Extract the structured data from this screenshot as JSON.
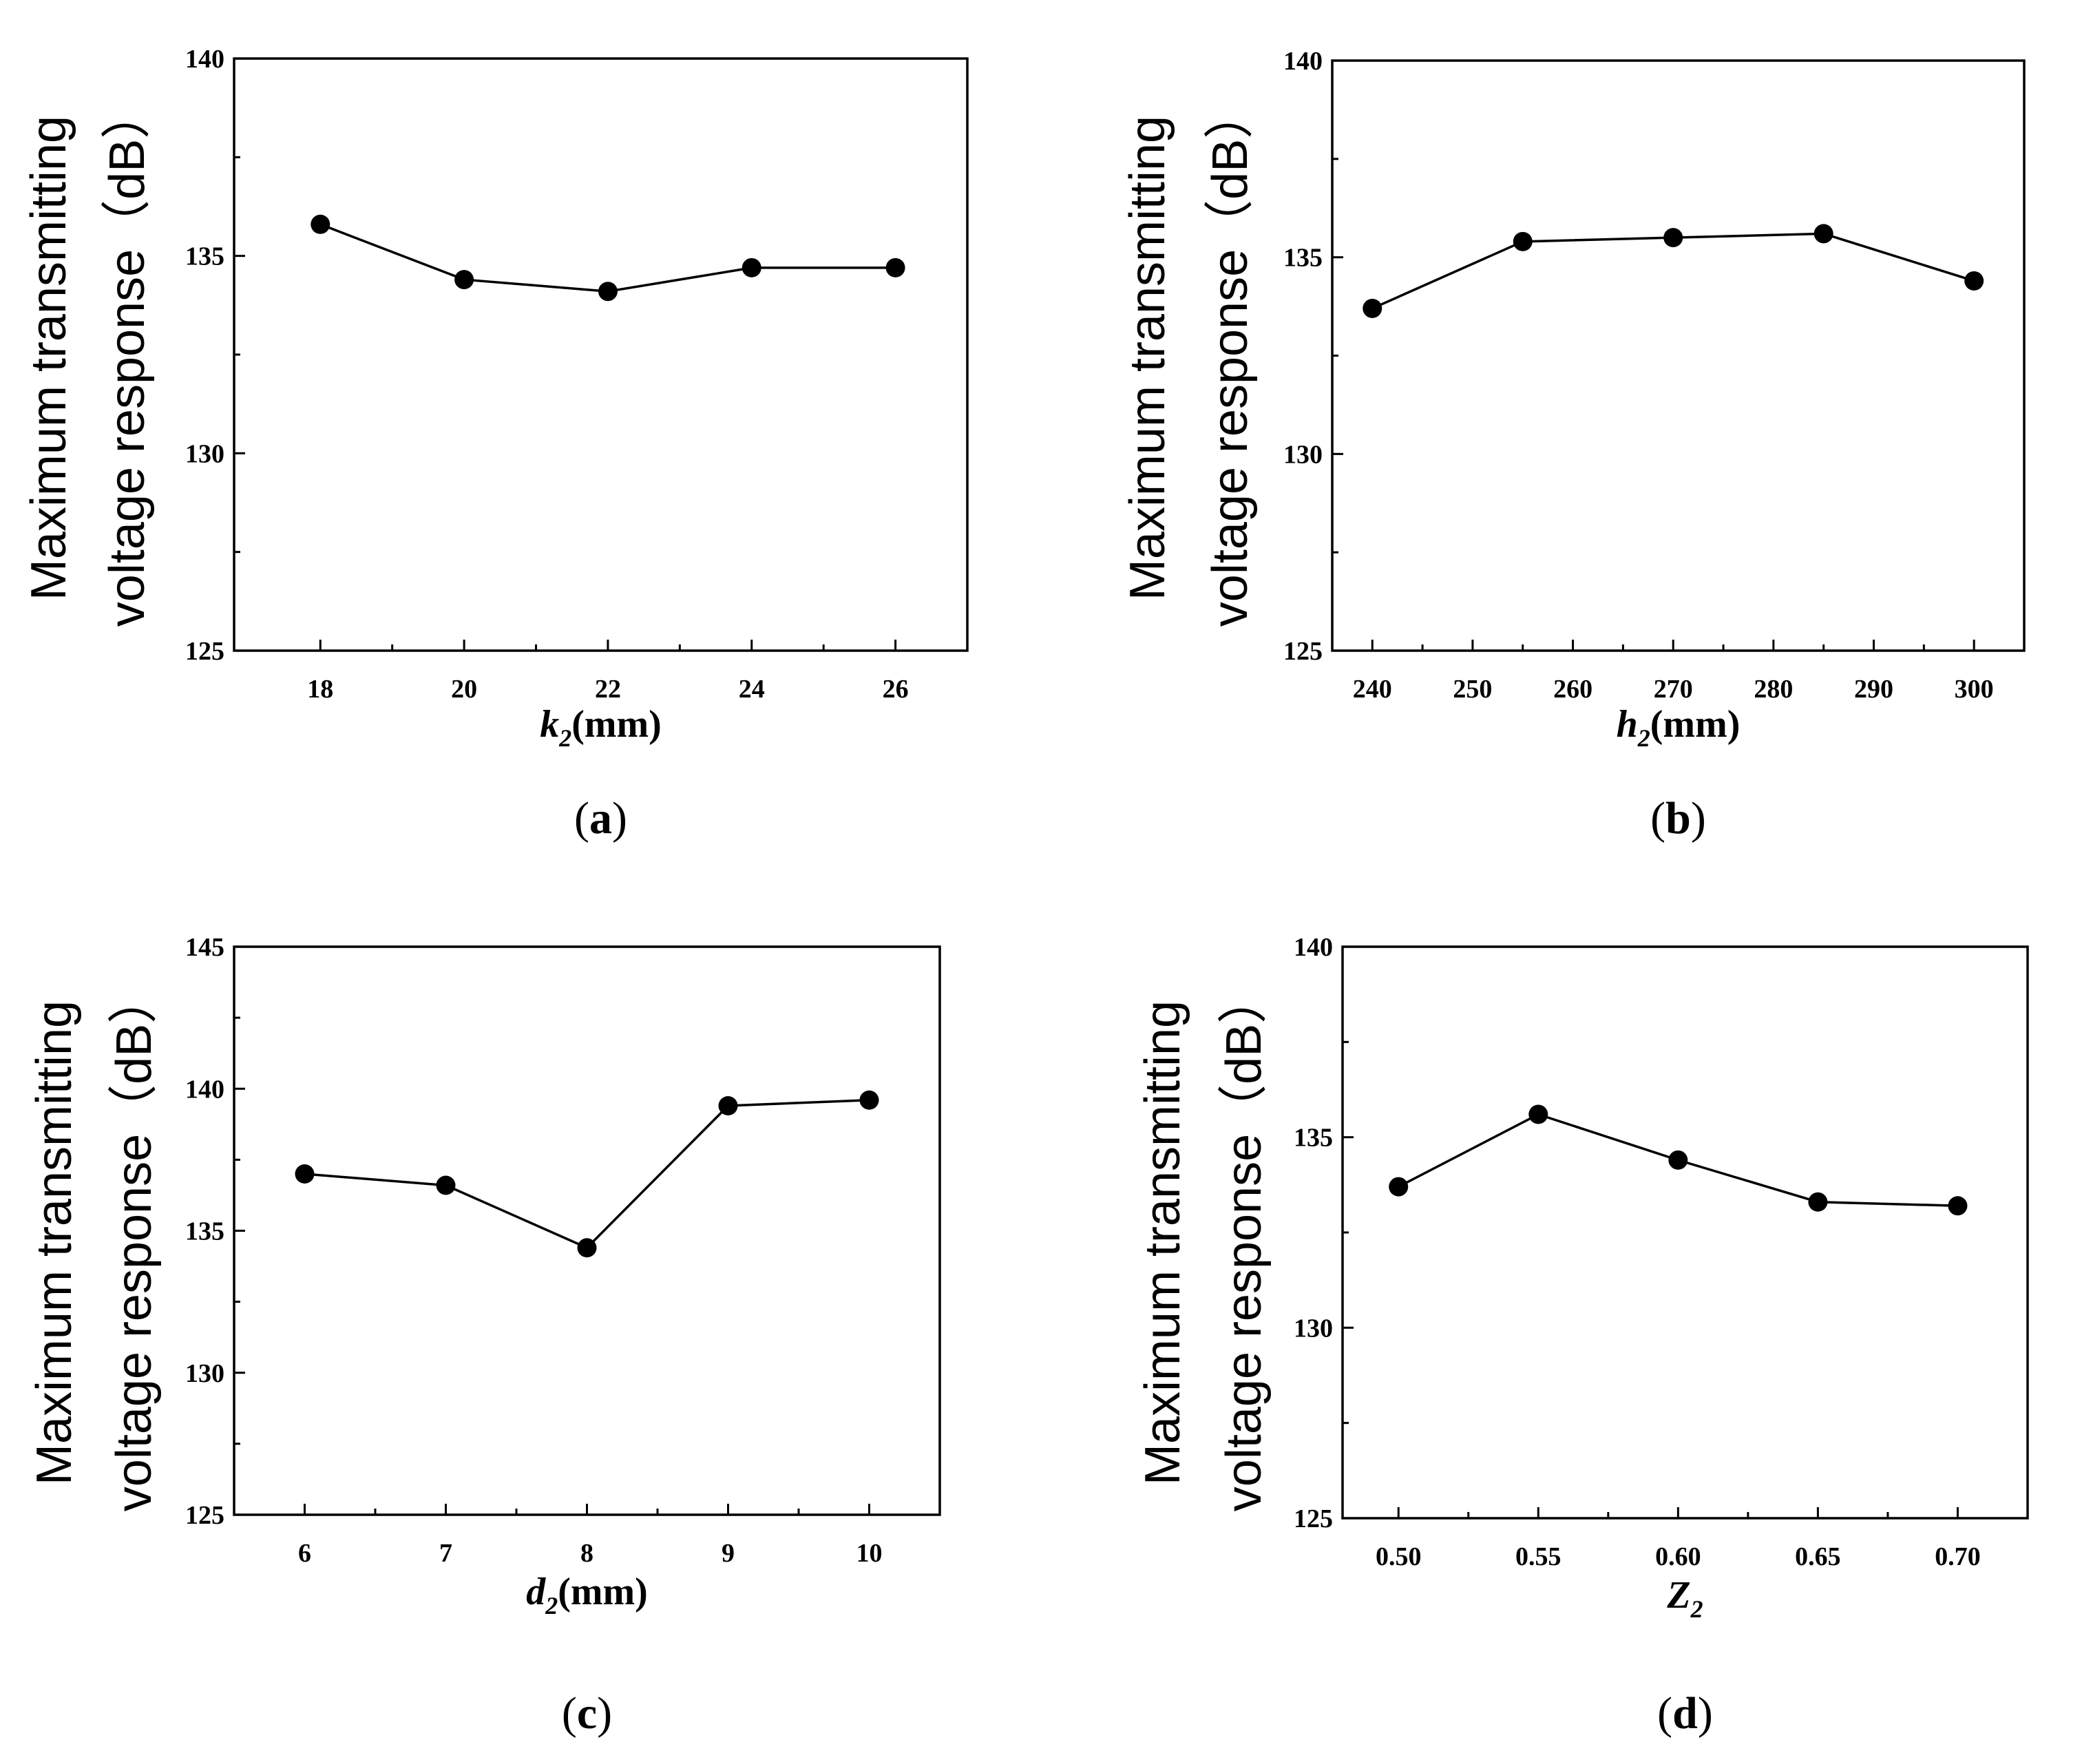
{
  "chart_data": [
    {
      "type": "line",
      "panel_label": "a",
      "xlabel": {
        "var": "k",
        "sub": "2",
        "unit": "(mm)"
      },
      "ylabel_lines": [
        "Maximum transmitting",
        "voltage response（dB）"
      ],
      "x": [
        18,
        20,
        22,
        24,
        26
      ],
      "values": [
        135.8,
        134.4,
        134.1,
        134.7,
        134.7
      ],
      "xlim": [
        16.8,
        27
      ],
      "ylim": [
        125,
        140
      ],
      "xticks": [
        18,
        20,
        22,
        24,
        26
      ],
      "xtick_labels": [
        "18",
        "20",
        "22",
        "24",
        "26"
      ],
      "yticks": [
        125,
        130,
        135,
        140
      ],
      "ytick_labels": [
        "125",
        "130",
        "135",
        "140"
      ]
    },
    {
      "type": "line",
      "panel_label": "b",
      "xlabel": {
        "var": "h",
        "sub": "2",
        "unit": "(mm)"
      },
      "ylabel_lines": [
        "Maximum transmitting",
        "voltage response（dB）"
      ],
      "x": [
        240,
        255,
        270,
        285,
        300
      ],
      "values": [
        133.7,
        135.4,
        135.5,
        135.6,
        134.4
      ],
      "xlim": [
        236,
        305
      ],
      "ylim": [
        125,
        140
      ],
      "xticks": [
        240,
        250,
        260,
        270,
        280,
        290,
        300
      ],
      "xtick_labels": [
        "240",
        "250",
        "260",
        "270",
        "280",
        "290",
        "300"
      ],
      "yticks": [
        125,
        130,
        135,
        140
      ],
      "ytick_labels": [
        "125",
        "130",
        "135",
        "140"
      ]
    },
    {
      "type": "line",
      "panel_label": "c",
      "xlabel": {
        "var": "d",
        "sub": "2",
        "unit": "(mm)"
      },
      "ylabel_lines": [
        "Maximum transmitting",
        "voltage response（dB）"
      ],
      "x": [
        6,
        7,
        8,
        9,
        10
      ],
      "values": [
        137.0,
        136.6,
        134.4,
        139.4,
        139.6
      ],
      "xlim": [
        5.5,
        10.5
      ],
      "ylim": [
        125,
        145
      ],
      "xticks": [
        6,
        7,
        8,
        9,
        10
      ],
      "xtick_labels": [
        "6",
        "7",
        "8",
        "9",
        "10"
      ],
      "yticks": [
        125,
        130,
        135,
        140,
        145
      ],
      "ytick_labels": [
        "125",
        "130",
        "135",
        "140",
        "145"
      ]
    },
    {
      "type": "line",
      "panel_label": "d",
      "xlabel": {
        "var": "Z",
        "sub": "2",
        "unit": ""
      },
      "ylabel_lines": [
        "Maximum transmitting",
        "voltage response（dB）"
      ],
      "x": [
        0.5,
        0.55,
        0.6,
        0.65,
        0.7
      ],
      "values": [
        133.7,
        135.6,
        134.4,
        133.3,
        133.2
      ],
      "xlim": [
        0.48,
        0.725
      ],
      "ylim": [
        125,
        140
      ],
      "xticks": [
        0.5,
        0.55,
        0.6,
        0.65,
        0.7
      ],
      "xtick_labels": [
        "0.50",
        "0.55",
        "0.60",
        "0.65",
        "0.70"
      ],
      "yticks": [
        125,
        130,
        135,
        140
      ],
      "ytick_labels": [
        "125",
        "130",
        "135",
        "140"
      ]
    }
  ]
}
